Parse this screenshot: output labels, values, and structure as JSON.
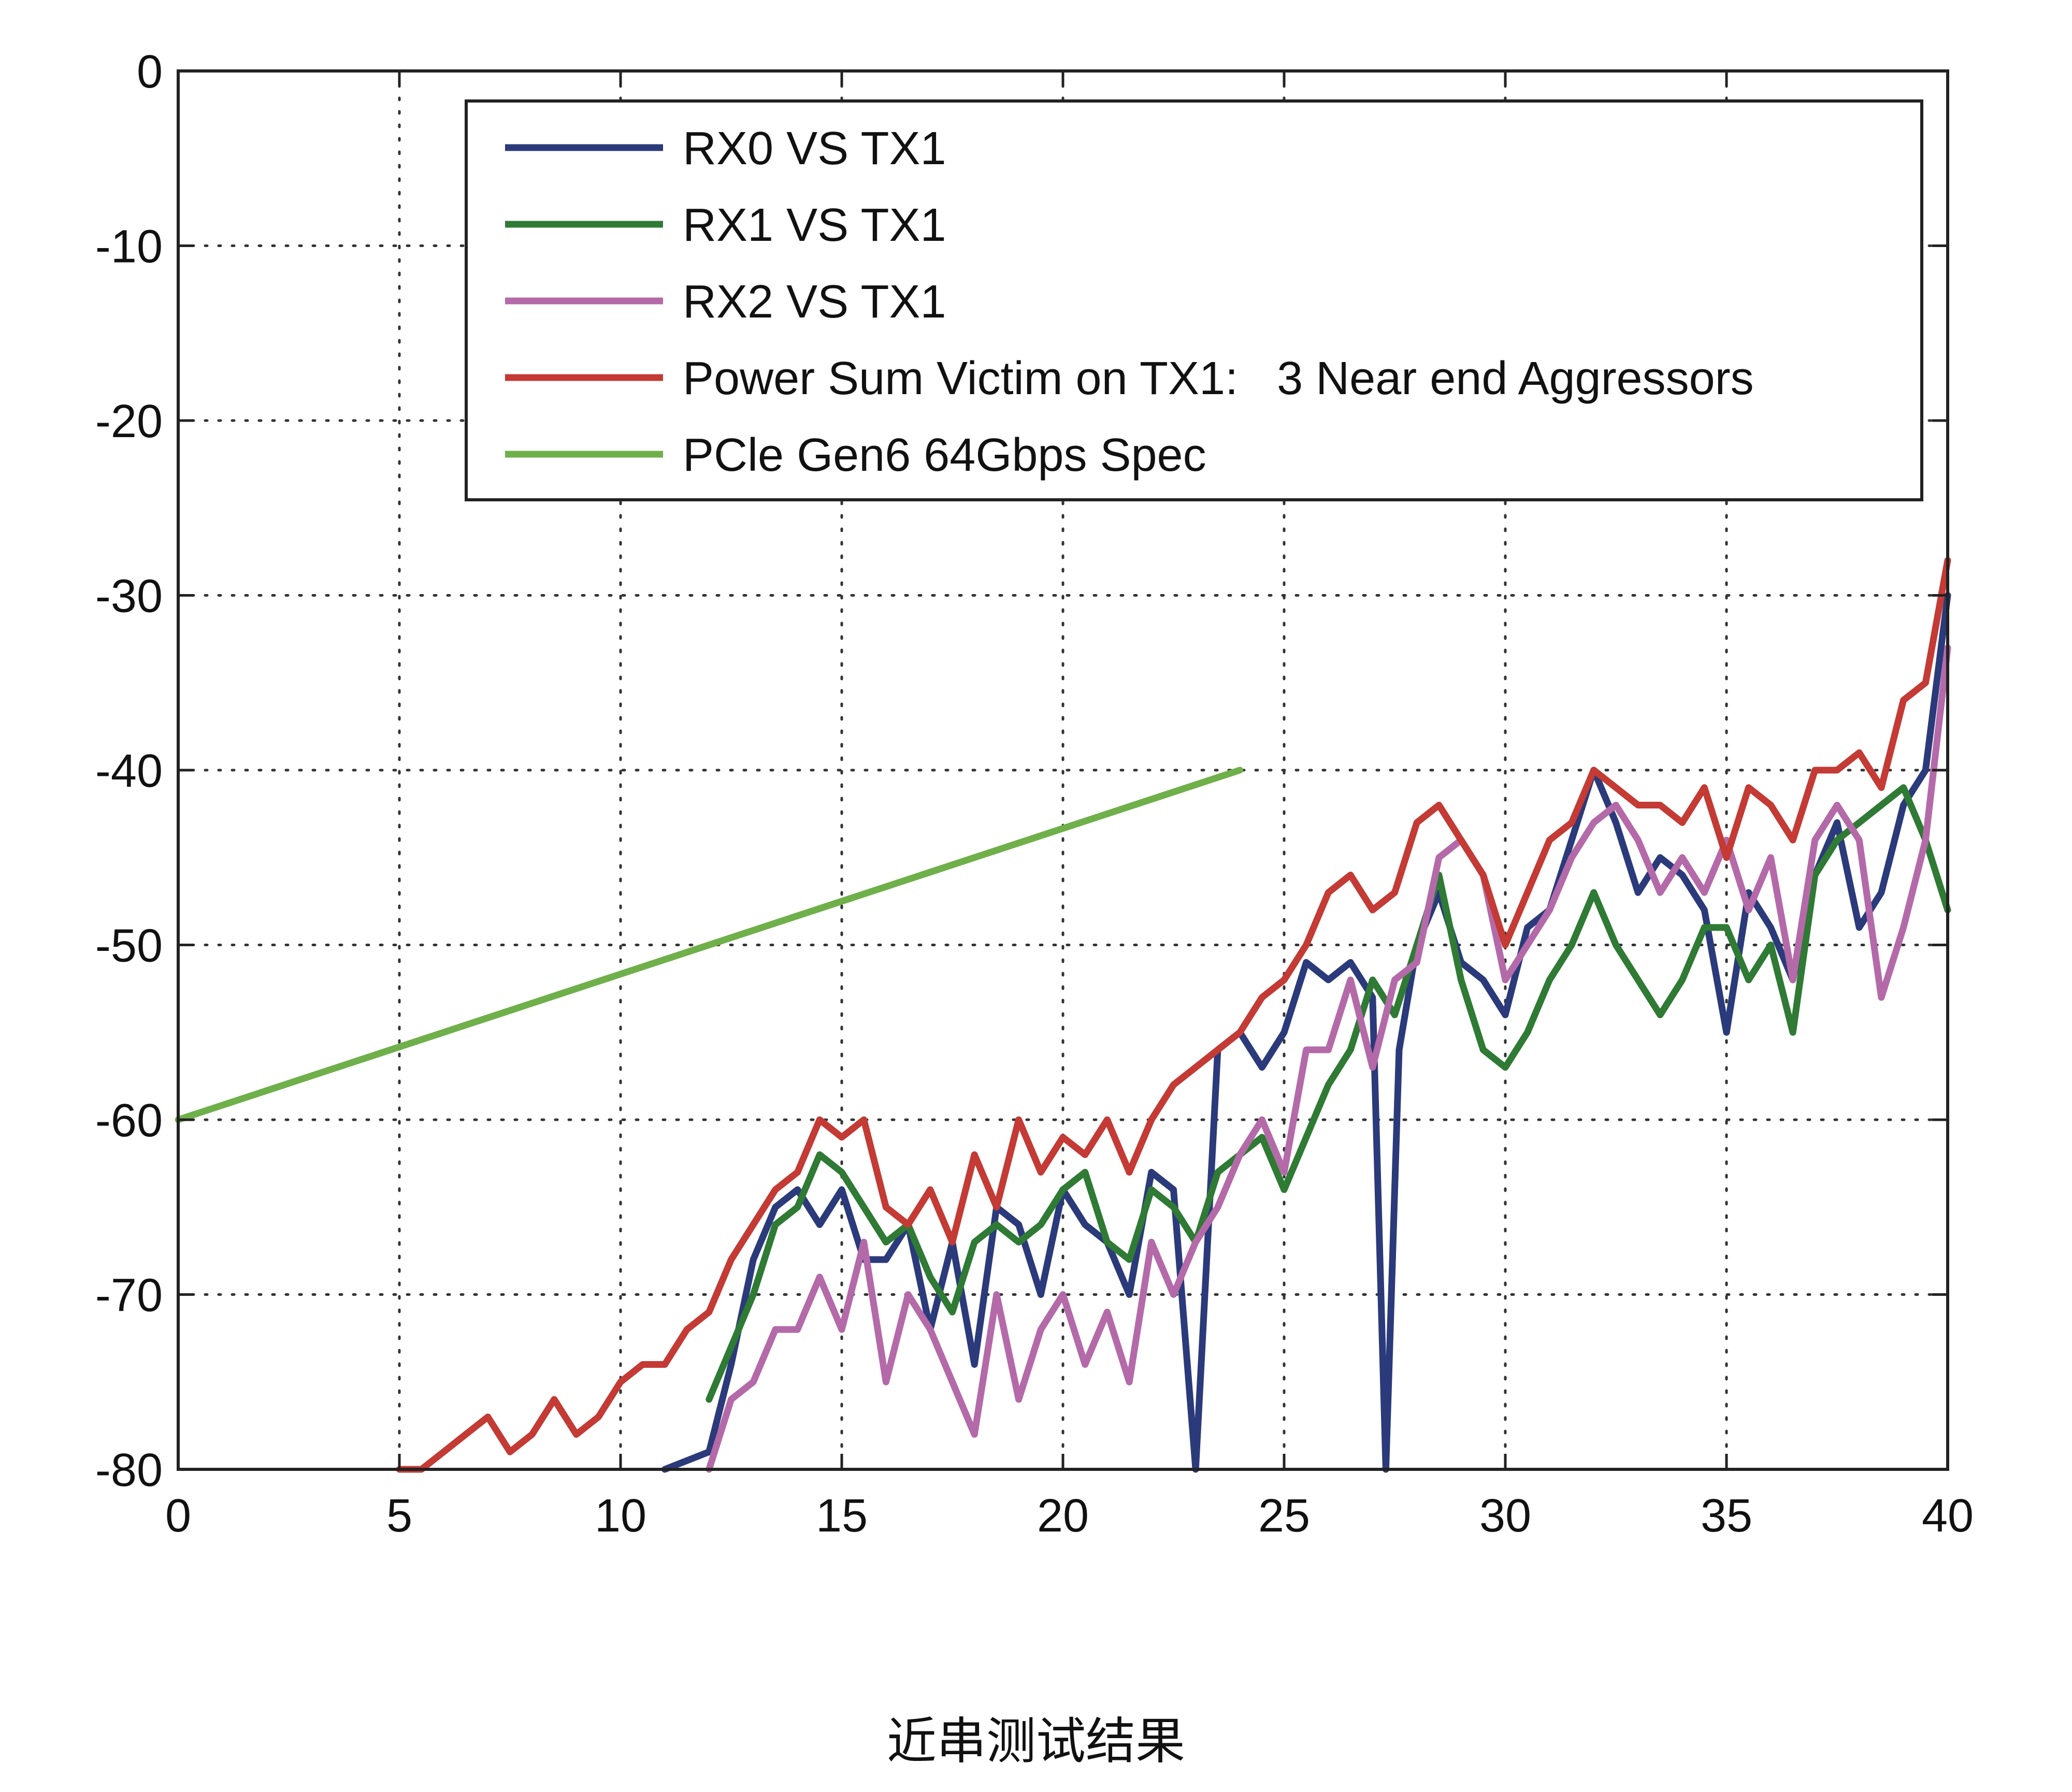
{
  "caption": "近串测试结果",
  "chart_data": {
    "type": "line",
    "title": "",
    "xlabel": "",
    "ylabel": "",
    "xlim": [
      0,
      40
    ],
    "ylim": [
      -80,
      0
    ],
    "xticks": [
      0,
      5,
      10,
      15,
      20,
      25,
      30,
      35,
      40
    ],
    "yticks": [
      0,
      -10,
      -20,
      -30,
      -40,
      -50,
      -60,
      -70,
      -80
    ],
    "grid": true,
    "legend_position": "top-right",
    "series": [
      {
        "name": "RX0 VS TX1",
        "color": "#2b3a7a",
        "x": [
          11,
          12,
          12.5,
          13,
          13.5,
          14,
          14.5,
          15,
          15.5,
          16,
          16.5,
          17,
          17.5,
          18,
          18.5,
          19,
          19.5,
          20,
          20.5,
          21,
          21.5,
          22,
          22.5,
          23,
          23.5,
          24,
          24.5,
          25,
          25.5,
          26,
          26.5,
          27,
          27.3,
          27.6,
          28,
          28.5,
          29,
          29.5,
          30,
          30.5,
          31,
          31.5,
          32,
          32.5,
          33,
          33.5,
          34,
          34.5,
          35,
          35.5,
          36,
          36.5,
          37,
          37.5,
          38,
          38.5,
          39,
          39.5,
          40
        ],
        "y": [
          -80,
          -79,
          -74,
          -68,
          -65,
          -64,
          -66,
          -64,
          -68,
          -68,
          -66,
          -72,
          -67,
          -74,
          -65,
          -66,
          -70,
          -64,
          -66,
          -67,
          -70,
          -63,
          -64,
          -80,
          -56,
          -55,
          -57,
          -55,
          -51,
          -52,
          -51,
          -53,
          -80,
          -56,
          -50,
          -47,
          -51,
          -52,
          -54,
          -49,
          -48,
          -44,
          -40,
          -43,
          -47,
          -45,
          -46,
          -48,
          -55,
          -47,
          -49,
          -52,
          -46,
          -43,
          -49,
          -47,
          -42,
          -40,
          -30
        ]
      },
      {
        "name": "RX1 VS TX1",
        "color": "#2f7a34",
        "x": [
          12,
          12.5,
          13,
          13.5,
          14,
          14.5,
          15,
          15.5,
          16,
          16.5,
          17,
          17.5,
          18,
          18.5,
          19,
          19.5,
          20,
          20.5,
          21,
          21.5,
          22,
          22.5,
          23,
          23.5,
          24,
          24.5,
          25,
          25.5,
          26,
          26.5,
          27,
          27.5,
          28,
          28.5,
          29,
          29.5,
          30,
          30.5,
          31,
          31.5,
          32,
          32.5,
          33,
          33.5,
          34,
          34.5,
          35,
          35.5,
          36,
          36.5,
          37,
          37.5,
          38,
          38.5,
          39,
          39.5,
          40
        ],
        "y": [
          -76,
          -73,
          -70,
          -66,
          -65,
          -62,
          -63,
          -65,
          -67,
          -66,
          -69,
          -71,
          -67,
          -66,
          -67,
          -66,
          -64,
          -63,
          -67,
          -68,
          -64,
          -65,
          -67,
          -63,
          -62,
          -61,
          -64,
          -61,
          -58,
          -56,
          -52,
          -54,
          -50,
          -46,
          -52,
          -56,
          -57,
          -55,
          -52,
          -50,
          -47,
          -50,
          -52,
          -54,
          -52,
          -49,
          -49,
          -52,
          -50,
          -55,
          -46,
          -44,
          -43,
          -42,
          -41,
          -44,
          -48
        ]
      },
      {
        "name": "RX2 VS TX1",
        "color": "#b46aa8",
        "x": [
          12,
          12.5,
          13,
          13.5,
          14,
          14.5,
          15,
          15.5,
          16,
          16.5,
          17,
          17.5,
          18,
          18.5,
          19,
          19.5,
          20,
          20.5,
          21,
          21.5,
          22,
          22.5,
          23,
          23.5,
          24,
          24.5,
          25,
          25.5,
          26,
          26.5,
          27,
          27.5,
          28,
          28.5,
          29,
          29.5,
          30,
          30.5,
          31,
          31.5,
          32,
          32.5,
          33,
          33.5,
          34,
          34.5,
          35,
          35.5,
          36,
          36.5,
          37,
          37.5,
          38,
          38.5,
          39,
          39.5,
          40
        ],
        "y": [
          -80,
          -76,
          -75,
          -72,
          -72,
          -69,
          -72,
          -67,
          -75,
          -70,
          -72,
          -75,
          -78,
          -70,
          -76,
          -72,
          -70,
          -74,
          -71,
          -75,
          -67,
          -70,
          -67,
          -65,
          -62,
          -60,
          -63,
          -56,
          -56,
          -52,
          -57,
          -52,
          -51,
          -45,
          -44,
          -46,
          -52,
          -50,
          -48,
          -45,
          -43,
          -42,
          -44,
          -47,
          -45,
          -47,
          -44,
          -48,
          -45,
          -52,
          -44,
          -42,
          -44,
          -53,
          -49,
          -44,
          -33
        ]
      },
      {
        "name": "Power Sum Victim on TX1:   3 Near end Aggressors",
        "color": "#c43a34",
        "x": [
          5,
          5.5,
          6,
          6.5,
          7,
          7.5,
          8,
          8.5,
          9,
          9.5,
          10,
          10.5,
          11,
          11.5,
          12,
          12.5,
          13,
          13.5,
          14,
          14.5,
          15,
          15.5,
          16,
          16.5,
          17,
          17.5,
          18,
          18.5,
          19,
          19.5,
          20,
          20.5,
          21,
          21.5,
          22,
          22.5,
          23,
          23.5,
          24,
          24.5,
          25,
          25.5,
          26,
          26.5,
          27,
          27.5,
          28,
          28.5,
          29,
          29.5,
          30,
          30.5,
          31,
          31.5,
          32,
          32.5,
          33,
          33.5,
          34,
          34.5,
          35,
          35.5,
          36,
          36.5,
          37,
          37.5,
          38,
          38.5,
          39,
          39.5,
          40
        ],
        "y": [
          -80,
          -80,
          -79,
          -78,
          -77,
          -79,
          -78,
          -76,
          -78,
          -77,
          -75,
          -74,
          -74,
          -72,
          -71,
          -68,
          -66,
          -64,
          -63,
          -60,
          -61,
          -60,
          -65,
          -66,
          -64,
          -67,
          -62,
          -65,
          -60,
          -63,
          -61,
          -62,
          -60,
          -63,
          -60,
          -58,
          -57,
          -56,
          -55,
          -53,
          -52,
          -50,
          -47,
          -46,
          -48,
          -47,
          -43,
          -42,
          -44,
          -46,
          -50,
          -47,
          -44,
          -43,
          -40,
          -41,
          -42,
          -42,
          -43,
          -41,
          -45,
          -41,
          -42,
          -44,
          -40,
          -40,
          -39,
          -41,
          -36,
          -35,
          -28
        ]
      },
      {
        "name": "PCle Gen6 64Gbps Spec",
        "color": "#6fb04a",
        "x": [
          0,
          24
        ],
        "y": [
          -60,
          -40
        ]
      }
    ]
  }
}
